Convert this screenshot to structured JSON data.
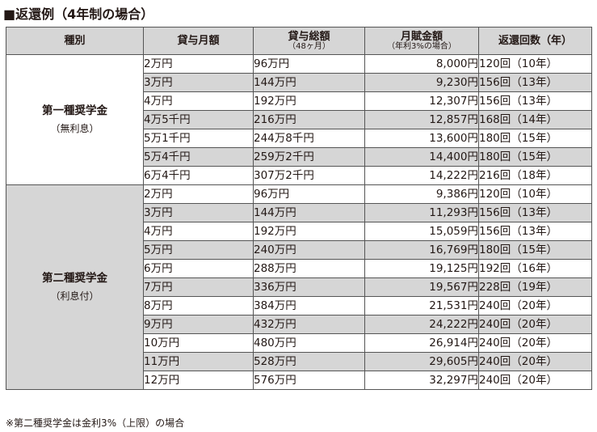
{
  "title": "■返還例（4年制の場合）",
  "headers": {
    "type": "種別",
    "monthly": "貸与月額",
    "total": "貸与総額",
    "total_sub": "（48ヶ月）",
    "payment": "月賦金額",
    "payment_sub": "（年利3%の場合）",
    "repay": "返還回数（年）"
  },
  "groups": [
    {
      "name": "第一種奨学金",
      "sub": "（無利息）",
      "rows": [
        {
          "monthly": "2万円",
          "total": "96万円",
          "payment": "8,000円",
          "repay": "120回（10年）"
        },
        {
          "monthly": "3万円",
          "total": "144万円",
          "payment": "9,230円",
          "repay": "156回（13年）"
        },
        {
          "monthly": "4万円",
          "total": "192万円",
          "payment": "12,307円",
          "repay": "156回（13年）"
        },
        {
          "monthly": "4万5千円",
          "total": "216万円",
          "payment": "12,857円",
          "repay": "168回（14年）"
        },
        {
          "monthly": "5万1千円",
          "total": "244万8千円",
          "payment": "13,600円",
          "repay": "180回（15年）"
        },
        {
          "monthly": "5万4千円",
          "total": "259万2千円",
          "payment": "14,400円",
          "repay": "180回（15年）"
        },
        {
          "monthly": "6万4千円",
          "total": "307万2千円",
          "payment": "14,222円",
          "repay": "216回（18年）"
        }
      ]
    },
    {
      "name": "第二種奨学金",
      "sub": "（利息付）",
      "rows": [
        {
          "monthly": "2万円",
          "total": "96万円",
          "payment": "9,386円",
          "repay": "120回（10年）"
        },
        {
          "monthly": "3万円",
          "total": "144万円",
          "payment": "11,293円",
          "repay": "156回（13年）"
        },
        {
          "monthly": "4万円",
          "total": "192万円",
          "payment": "15,059円",
          "repay": "156回（13年）"
        },
        {
          "monthly": "5万円",
          "total": "240万円",
          "payment": "16,769円",
          "repay": "180回（15年）"
        },
        {
          "monthly": "6万円",
          "total": "288万円",
          "payment": "19,125円",
          "repay": "192回（16年）"
        },
        {
          "monthly": "7万円",
          "total": "336万円",
          "payment": "19,567円",
          "repay": "228回（19年）"
        },
        {
          "monthly": "8万円",
          "total": "384万円",
          "payment": "21,531円",
          "repay": "240回（20年）"
        },
        {
          "monthly": "9万円",
          "total": "432万円",
          "payment": "24,222円",
          "repay": "240回（20年）"
        },
        {
          "monthly": "10万円",
          "total": "480万円",
          "payment": "26,914円",
          "repay": "240回（20年）"
        },
        {
          "monthly": "11万円",
          "total": "528万円",
          "payment": "29,605円",
          "repay": "240回（20年）"
        },
        {
          "monthly": "12万円",
          "total": "576万円",
          "payment": "32,297円",
          "repay": "240回（20年）"
        }
      ]
    }
  ],
  "note": "※第二種奨学金は金利3%（上限）の場合"
}
